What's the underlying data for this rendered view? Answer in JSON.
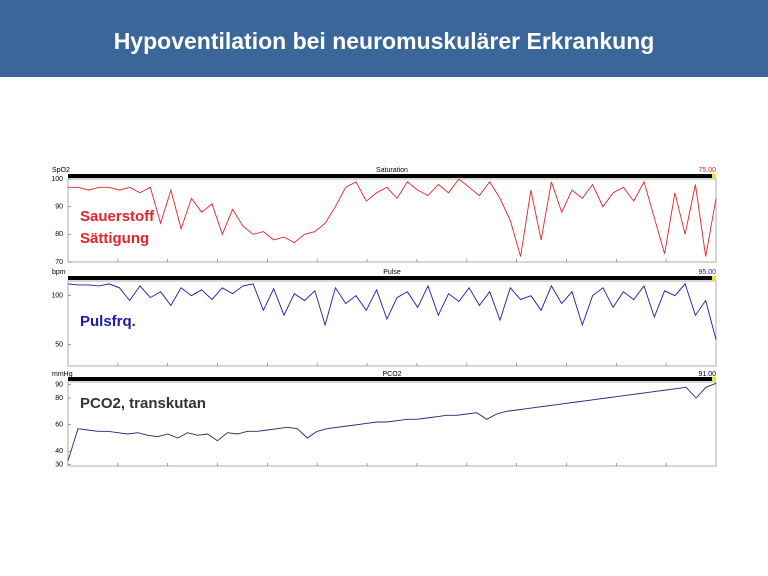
{
  "header": {
    "title": "Hypoventilation bei neuromuskulärer Erkrankung"
  },
  "chart_data": [
    {
      "type": "line",
      "title": "Saturation",
      "y_label": "SpO2",
      "readout": "75.00",
      "annotation": [
        "Sauerstoff",
        "Sättigung"
      ],
      "color": "#e3242b",
      "ylim": [
        70,
        100
      ],
      "yticks": [
        70,
        80,
        90,
        100
      ],
      "values": [
        97,
        97,
        96,
        97,
        97,
        96,
        97,
        95,
        97,
        84,
        96,
        82,
        93,
        88,
        91,
        80,
        89,
        83,
        80,
        81,
        78,
        79,
        77,
        80,
        81,
        84,
        90,
        97,
        99,
        92,
        95,
        97,
        93,
        99,
        96,
        94,
        98,
        95,
        100,
        97,
        94,
        99,
        93,
        85,
        72,
        96,
        78,
        99,
        88,
        96,
        93,
        98,
        90,
        95,
        97,
        92,
        99,
        86,
        73,
        95,
        80,
        98,
        72,
        93
      ]
    },
    {
      "type": "line",
      "title": "Pulse",
      "y_label": "bpm",
      "readout": "95.00",
      "annotation": [
        "Pulsfrq."
      ],
      "color": "#1c1caa",
      "ylim": [
        28,
        115
      ],
      "yticks": [
        50,
        100
      ],
      "values": [
        112,
        111,
        111,
        110,
        112,
        108,
        95,
        110,
        98,
        104,
        90,
        108,
        100,
        106,
        96,
        108,
        102,
        110,
        112,
        85,
        107,
        80,
        102,
        95,
        105,
        70,
        108,
        92,
        100,
        85,
        106,
        76,
        98,
        104,
        88,
        110,
        80,
        102,
        94,
        108,
        90,
        104,
        75,
        108,
        96,
        100,
        85,
        110,
        92,
        104,
        70,
        100,
        108,
        88,
        104,
        96,
        110,
        78,
        105,
        100,
        112,
        80,
        95,
        55
      ]
    },
    {
      "type": "line",
      "title": "PCO2",
      "y_label": "mmHg",
      "readout": "91.00",
      "annotation": [
        "PCO2, transkutan"
      ],
      "color": "#1f2870",
      "ylim": [
        29,
        92
      ],
      "yticks": [
        30,
        40,
        60,
        80,
        90
      ],
      "values": [
        33,
        57,
        56,
        55,
        55,
        54,
        53,
        54,
        52,
        51,
        53,
        50,
        54,
        52,
        53,
        48,
        54,
        53,
        55,
        55,
        56,
        57,
        58,
        57,
        50,
        55,
        57,
        58,
        59,
        60,
        61,
        62,
        62,
        63,
        64,
        64,
        65,
        66,
        67,
        67,
        68,
        69,
        64,
        68,
        70,
        71,
        72,
        73,
        74,
        75,
        76,
        77,
        78,
        79,
        80,
        81,
        82,
        83,
        84,
        85,
        86,
        87,
        88,
        80,
        88,
        91
      ]
    }
  ]
}
